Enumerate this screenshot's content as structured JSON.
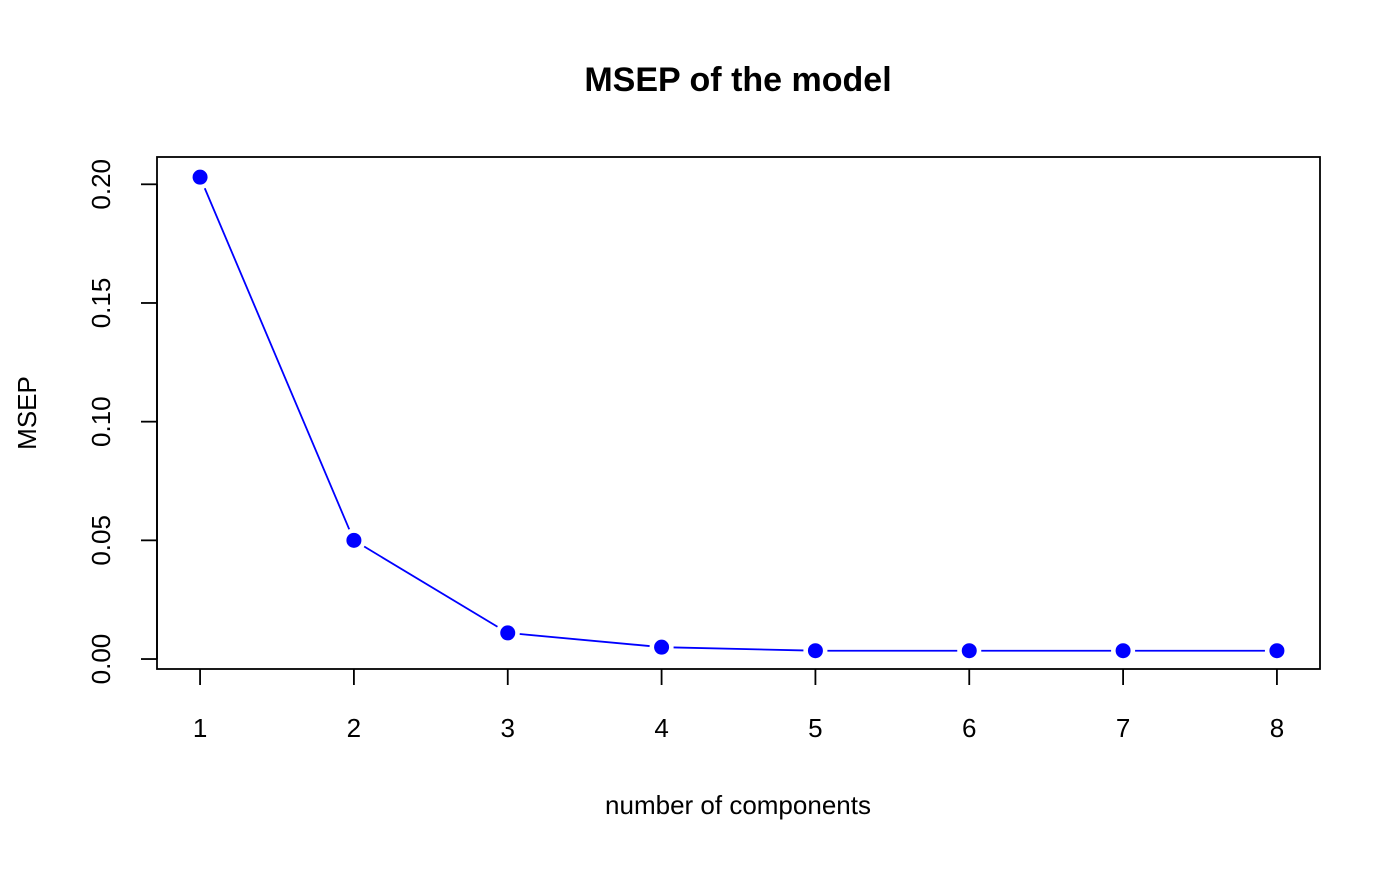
{
  "chart_data": {
    "type": "line",
    "title": "MSEP of the model",
    "xlabel": "number of components",
    "ylabel": "MSEP",
    "x": [
      1,
      2,
      3,
      4,
      5,
      6,
      7,
      8
    ],
    "series": [
      {
        "values": [
          0.203,
          0.05,
          0.011,
          0.005,
          0.0035,
          0.0035,
          0.0035,
          0.0035
        ]
      }
    ],
    "x_ticks": [
      "1",
      "2",
      "3",
      "4",
      "5",
      "6",
      "7",
      "8"
    ],
    "y_ticks": [
      "0.00",
      "0.05",
      "0.10",
      "0.15",
      "0.20"
    ],
    "xlim": [
      0.72,
      8.28
    ],
    "ylim": [
      -0.0042,
      0.2115
    ],
    "grid": false,
    "legend": "none",
    "line_style": "line-with-points",
    "colors": {
      "series": "#0000ff",
      "axis": "#000000"
    }
  }
}
